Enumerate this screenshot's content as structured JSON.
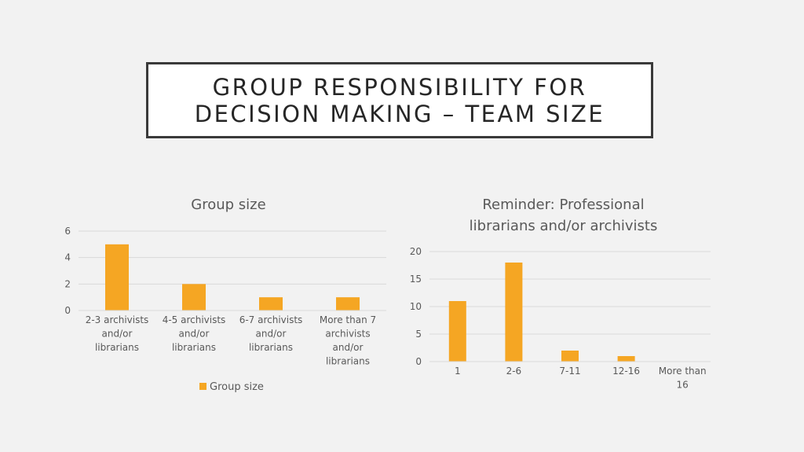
{
  "slide": {
    "title": "GROUP RESPONSIBILITY FOR\nDECISION MAKING – TEAM SIZE"
  },
  "colors": {
    "bar": "#f5a623",
    "grid": "#d9d9d9",
    "text": "#595959"
  },
  "chart_data": [
    {
      "type": "bar",
      "title": "Group size",
      "categories": [
        [
          "2-3 archivists",
          "and/or",
          "librarians"
        ],
        [
          "4-5 archivists",
          "and/or",
          "librarians"
        ],
        [
          "6-7 archivists",
          "and/or",
          "librarians"
        ],
        [
          "More than 7",
          "archivists",
          "and/or",
          "librarians"
        ]
      ],
      "series": [
        {
          "name": "Group size",
          "values": [
            5,
            2,
            1,
            1
          ]
        }
      ],
      "ylim": [
        0,
        6
      ],
      "yticks": [
        0,
        2,
        4,
        6
      ],
      "grid": true,
      "legend": "bottom"
    },
    {
      "type": "bar",
      "title": "Reminder: Professional librarians and/or archivists",
      "categories": [
        [
          "1"
        ],
        [
          "2-6"
        ],
        [
          "7-11"
        ],
        [
          "12-16"
        ],
        [
          "More than",
          "16"
        ]
      ],
      "series": [
        {
          "values": [
            11,
            18,
            2,
            1,
            0
          ]
        }
      ],
      "ylim": [
        0,
        20
      ],
      "yticks": [
        0,
        5,
        10,
        15,
        20
      ],
      "grid": true,
      "legend": "none"
    }
  ]
}
